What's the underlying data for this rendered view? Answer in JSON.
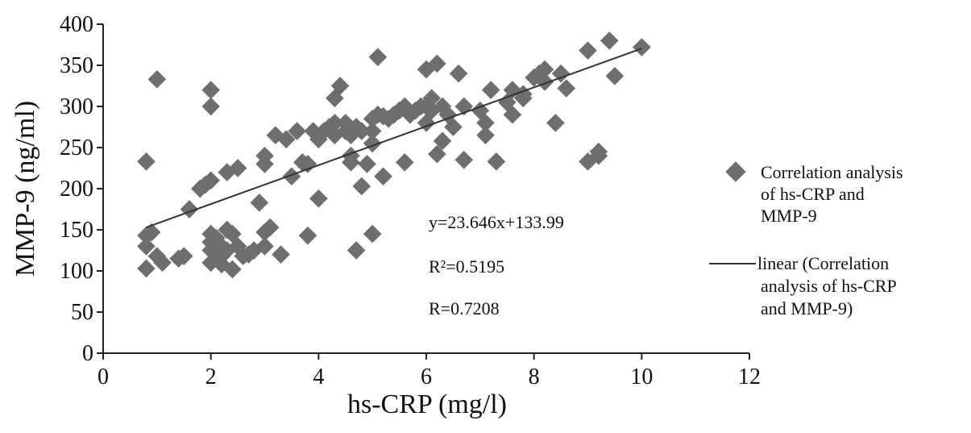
{
  "chart_data": {
    "type": "scatter",
    "title": "",
    "xlabel": "hs-CRP (mg/l)",
    "ylabel": "MMP-9 (ng/ml)",
    "xlim": [
      0,
      12
    ],
    "ylim": [
      0,
      400
    ],
    "xticks": [
      "0",
      "2",
      "4",
      "6",
      "8",
      "10",
      "12"
    ],
    "yticks": [
      "0",
      "50",
      "100",
      "150",
      "200",
      "250",
      "300",
      "350",
      "400"
    ],
    "grid": false,
    "legend_position": "right",
    "marker_color": "#6e6e6e",
    "line_color": "#333333",
    "series": [
      {
        "name": "Correlation analysis of hs-CRP and MMP-9",
        "kind": "scatter",
        "points": [
          [
            0.8,
            103
          ],
          [
            0.8,
            130
          ],
          [
            0.8,
            143
          ],
          [
            0.8,
            233
          ],
          [
            0.9,
            147
          ],
          [
            1.0,
            118
          ],
          [
            1.1,
            110
          ],
          [
            1.0,
            333
          ],
          [
            1.4,
            115
          ],
          [
            1.5,
            118
          ],
          [
            1.6,
            175
          ],
          [
            1.8,
            200
          ],
          [
            1.9,
            205
          ],
          [
            2.0,
            210
          ],
          [
            2.0,
            320
          ],
          [
            2.0,
            300
          ],
          [
            2.0,
            145
          ],
          [
            2.0,
            135
          ],
          [
            2.0,
            125
          ],
          [
            2.0,
            110
          ],
          [
            2.1,
            140
          ],
          [
            2.2,
            130
          ],
          [
            2.2,
            118
          ],
          [
            2.2,
            108
          ],
          [
            2.3,
            220
          ],
          [
            2.3,
            150
          ],
          [
            2.3,
            125
          ],
          [
            2.4,
            102
          ],
          [
            2.4,
            145
          ],
          [
            2.5,
            130
          ],
          [
            2.5,
            225
          ],
          [
            2.6,
            118
          ],
          [
            2.7,
            120
          ],
          [
            2.8,
            125
          ],
          [
            2.9,
            183
          ],
          [
            3.0,
            240
          ],
          [
            3.0,
            230
          ],
          [
            3.0,
            147
          ],
          [
            3.0,
            130
          ],
          [
            3.1,
            153
          ],
          [
            3.2,
            265
          ],
          [
            3.3,
            120
          ],
          [
            3.4,
            260
          ],
          [
            3.5,
            215
          ],
          [
            3.6,
            270
          ],
          [
            3.7,
            232
          ],
          [
            3.8,
            230
          ],
          [
            3.8,
            143
          ],
          [
            3.9,
            270
          ],
          [
            4.0,
            260
          ],
          [
            4.0,
            188
          ],
          [
            4.1,
            270
          ],
          [
            4.2,
            275
          ],
          [
            4.3,
            280
          ],
          [
            4.3,
            265
          ],
          [
            4.3,
            310
          ],
          [
            4.4,
            325
          ],
          [
            4.5,
            280
          ],
          [
            4.5,
            270
          ],
          [
            4.6,
            265
          ],
          [
            4.6,
            232
          ],
          [
            4.6,
            240
          ],
          [
            4.7,
            125
          ],
          [
            4.7,
            275
          ],
          [
            4.8,
            270
          ],
          [
            4.8,
            203
          ],
          [
            4.9,
            230
          ],
          [
            5.0,
            285
          ],
          [
            5.0,
            270
          ],
          [
            5.0,
            145
          ],
          [
            5.0,
            255
          ],
          [
            5.1,
            290
          ],
          [
            5.1,
            360
          ],
          [
            5.2,
            215
          ],
          [
            5.2,
            288
          ],
          [
            5.3,
            285
          ],
          [
            5.4,
            290
          ],
          [
            5.5,
            295
          ],
          [
            5.6,
            300
          ],
          [
            5.6,
            232
          ],
          [
            5.7,
            290
          ],
          [
            5.8,
            295
          ],
          [
            5.9,
            300
          ],
          [
            6.0,
            345
          ],
          [
            6.0,
            300
          ],
          [
            6.0,
            280
          ],
          [
            6.1,
            310
          ],
          [
            6.1,
            295
          ],
          [
            6.2,
            352
          ],
          [
            6.2,
            242
          ],
          [
            6.3,
            300
          ],
          [
            6.3,
            258
          ],
          [
            6.4,
            290
          ],
          [
            6.5,
            275
          ],
          [
            6.6,
            340
          ],
          [
            6.7,
            300
          ],
          [
            6.7,
            235
          ],
          [
            7.0,
            295
          ],
          [
            7.1,
            265
          ],
          [
            7.1,
            280
          ],
          [
            7.2,
            320
          ],
          [
            7.3,
            233
          ],
          [
            7.5,
            305
          ],
          [
            7.6,
            320
          ],
          [
            7.6,
            290
          ],
          [
            7.8,
            315
          ],
          [
            7.8,
            310
          ],
          [
            8.0,
            335
          ],
          [
            8.1,
            340
          ],
          [
            8.2,
            345
          ],
          [
            8.2,
            330
          ],
          [
            8.4,
            280
          ],
          [
            8.5,
            340
          ],
          [
            8.6,
            322
          ],
          [
            9.0,
            368
          ],
          [
            9.0,
            233
          ],
          [
            9.2,
            240
          ],
          [
            9.2,
            245
          ],
          [
            9.4,
            380
          ],
          [
            9.5,
            337
          ],
          [
            10.0,
            372
          ]
        ]
      },
      {
        "name": "linear (Correlation analysis of hs-CRP and MMP-9)",
        "kind": "line",
        "slope": 23.646,
        "intercept": 133.99,
        "x_range": [
          0.8,
          10.0
        ]
      }
    ],
    "annotations": [
      "y=23.646x+133.99",
      "R²=0.5195",
      "R=0.7208"
    ]
  },
  "legend": {
    "scatter_lines": [
      "Correlation analysis",
      "of hs-CRP and",
      "MMP-9"
    ],
    "line_lines": [
      "linear (Correlation",
      "analysis of hs-CRP",
      "and MMP-9)"
    ]
  }
}
